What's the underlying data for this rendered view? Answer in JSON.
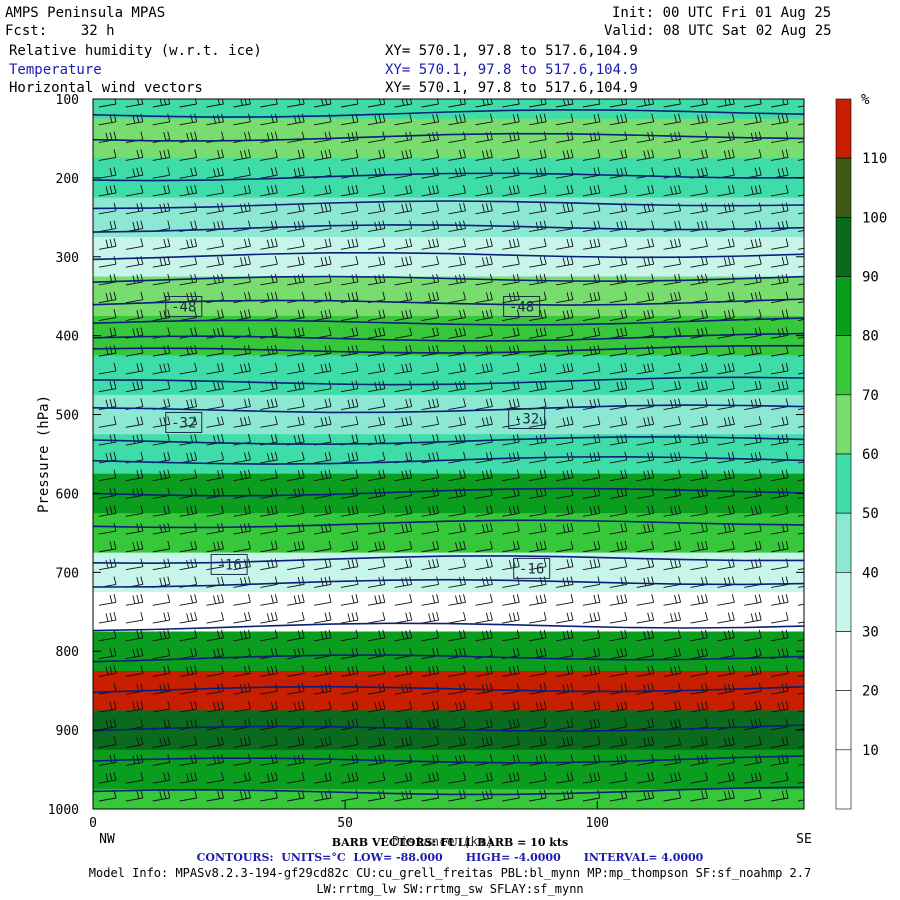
{
  "header": {
    "model": "AMPS Peninsula MPAS",
    "fcst_label": "Fcst:",
    "fcst_value": "32 h",
    "init": "Init: 00 UTC Fri 01 Aug 25",
    "valid": "Valid: 08 UTC Sat 02 Aug 25",
    "fields": [
      {
        "name": "Relative humidity (w.r.t. ice)",
        "xy": "XY= 570.1, 97.8 to 517.6,104.9",
        "color": "#000000"
      },
      {
        "name": "Temperature",
        "xy": "XY= 570.1, 97.8 to 517.6,104.9",
        "color": "#1a1ab0"
      },
      {
        "name": "Horizontal wind vectors",
        "xy": "XY= 570.1, 97.8 to 517.6,104.9",
        "color": "#000000"
      }
    ]
  },
  "chart_data": {
    "type": "heatmap",
    "title": "AMPS Peninsula MPAS",
    "xlabel": "Distance (km)",
    "ylabel": "Pressure (hPa)",
    "xlim": [
      0,
      141
    ],
    "ylim": [
      1000,
      100
    ],
    "x_ticks": [
      0,
      50,
      100
    ],
    "y_ticks": [
      100,
      200,
      300,
      400,
      500,
      600,
      700,
      800,
      900,
      1000
    ],
    "x_end_labels": {
      "left": "NW",
      "right": "SE"
    },
    "colorbar": {
      "unit": "%",
      "levels": [
        10,
        20,
        30,
        40,
        50,
        60,
        70,
        80,
        90,
        100,
        110
      ],
      "colors": [
        "#ffffff",
        "#ffffff",
        "#ffffff",
        "#c8f5ea",
        "#8ce8d2",
        "#3ddca8",
        "#78dc6e",
        "#36c83a",
        "#0b9d1e",
        "#0a6b1f",
        "#3f5a14",
        "#c71f00"
      ]
    },
    "rh_bands": [
      {
        "p": 100,
        "rh": 55
      },
      {
        "p": 150,
        "rh": 60
      },
      {
        "p": 200,
        "rh": 50
      },
      {
        "p": 250,
        "rh": 45
      },
      {
        "p": 300,
        "rh": 35
      },
      {
        "p": 350,
        "rh": 60
      },
      {
        "p": 400,
        "rh": 75
      },
      {
        "p": 450,
        "rh": 55
      },
      {
        "p": 500,
        "rh": 40
      },
      {
        "p": 550,
        "rh": 55
      },
      {
        "p": 600,
        "rh": 85
      },
      {
        "p": 650,
        "rh": 75
      },
      {
        "p": 700,
        "rh": 35
      },
      {
        "p": 750,
        "rh": 20
      },
      {
        "p": 800,
        "rh": 80
      },
      {
        "p": 850,
        "rh": 110
      },
      {
        "p": 900,
        "rh": 90
      },
      {
        "p": 950,
        "rh": 80
      },
      {
        "p": 1000,
        "rh": 75
      }
    ],
    "temperature_contour_labels": [
      {
        "label": "-48",
        "x": 18,
        "p": 363
      },
      {
        "label": "-48",
        "x": 85,
        "p": 363
      },
      {
        "label": "-32",
        "x": 18,
        "p": 510
      },
      {
        "label": "-32",
        "x": 86,
        "p": 505
      },
      {
        "label": "-16",
        "x": 27,
        "p": 690
      },
      {
        "label": "-16",
        "x": 87,
        "p": 695
      }
    ],
    "temperature_isotherm_pressures": [
      120,
      150,
      200,
      235,
      265,
      300,
      330,
      360,
      385,
      405,
      420,
      460,
      495,
      535,
      560,
      600,
      640,
      685,
      715,
      770,
      810,
      850,
      900,
      940,
      980
    ],
    "barb_rows": 40,
    "barb_cols": 27,
    "barb_vectors_note": "BARB VECTORS: FULL BARB = 10 kts",
    "contours": {
      "label_prefix": "CONTOURS:",
      "units": "UNITS=°C",
      "low": "LOW= -88.000",
      "high": "HIGH= -4.0000",
      "interval": "INTERVAL= 4.0000"
    }
  },
  "footer": {
    "model_info_1": "Model Info: MPASv8.2.3-194-gf29cd82c CU:cu_grell_freitas PBL:bl_mynn MP:mp_thompson SF:sf_noahmp 2.7",
    "model_info_2": "LW:rrtmg_lw SW:rrtmg_sw SFLAY:sf_mynn"
  }
}
